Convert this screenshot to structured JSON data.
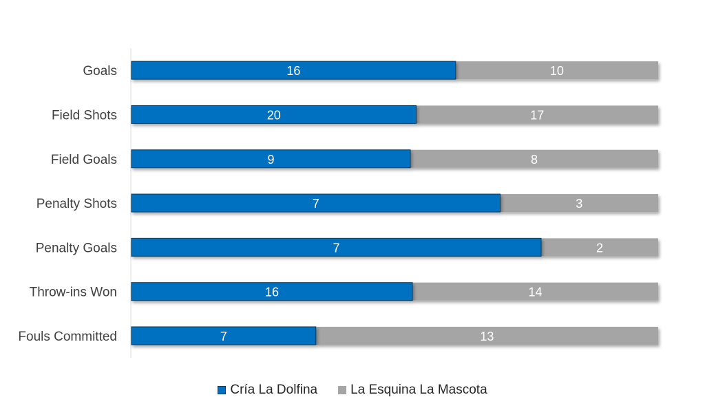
{
  "chart_data": {
    "type": "bar",
    "orientation": "horizontal",
    "stacked": "percent",
    "categories": [
      "Goals",
      "Field Shots",
      "Field Goals",
      "Penalty Shots",
      "Penalty Goals",
      "Throw-ins Won",
      "Fouls Committed"
    ],
    "series": [
      {
        "name": "Cría La Dolfina",
        "values": [
          16,
          20,
          9,
          7,
          7,
          16,
          7
        ],
        "color": "#0070c0"
      },
      {
        "name": "La Esquina La Mascota",
        "values": [
          10,
          17,
          8,
          3,
          2,
          14,
          13
        ],
        "color": "#a5a5a5"
      }
    ],
    "title": "",
    "xlabel": "",
    "ylabel": "",
    "grid": false,
    "legend_position": "bottom"
  }
}
